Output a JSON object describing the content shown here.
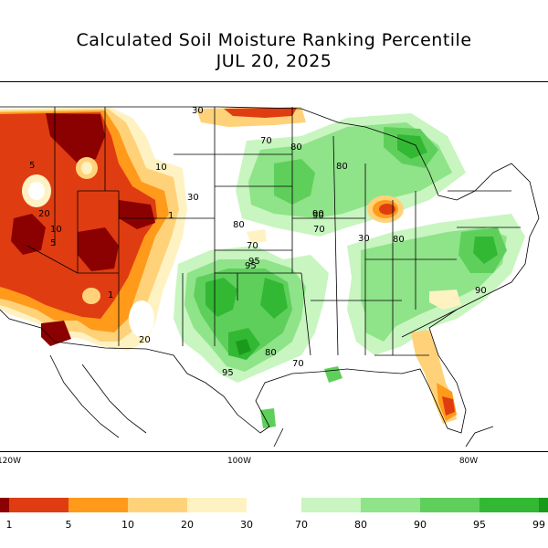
{
  "title": {
    "line1": "Calculated Soil Moisture Ranking Percentile",
    "line2": "JUL 20, 2025"
  },
  "longitude_ticks": [
    "120W",
    "100W",
    "80W"
  ],
  "legend": {
    "dry": [
      {
        "color": "#8b0000",
        "label": ""
      },
      {
        "color": "#e03c12",
        "label": "1"
      },
      {
        "color": "#ff9a1a",
        "label": "5"
      },
      {
        "color": "#ffd27a",
        "label": "10"
      },
      {
        "color": "#fff2c2",
        "label": "20"
      },
      {
        "color": "#ffffff",
        "label": "30"
      }
    ],
    "wet": [
      {
        "color": "#c8f5c0",
        "label": "70"
      },
      {
        "color": "#8fe389",
        "label": "80"
      },
      {
        "color": "#5fcf5c",
        "label": "90"
      },
      {
        "color": "#33b833",
        "label": "95"
      },
      {
        "color": "#1a9a1a",
        "label": "99"
      }
    ]
  },
  "contour_labels": [
    "30",
    "70",
    "80",
    "5",
    "10",
    "20",
    "90",
    "95",
    "5",
    "10",
    "1",
    "70",
    "30",
    "80",
    "90",
    "70",
    "80",
    "30",
    "80",
    "90",
    "95",
    "70",
    "95",
    "80",
    "20",
    "1"
  ],
  "colors": {
    "dry_extreme": "#8b0000",
    "dry_1": "#e03c12",
    "dry_5": "#ff9a1a",
    "dry_10": "#ffd27a",
    "dry_20": "#fff2c2",
    "wet_70": "#c8f5c0",
    "wet_80": "#8fe389",
    "wet_90": "#5fcf5c",
    "wet_95": "#33b833",
    "wet_99": "#1a9a1a",
    "state_border": "#000000"
  }
}
